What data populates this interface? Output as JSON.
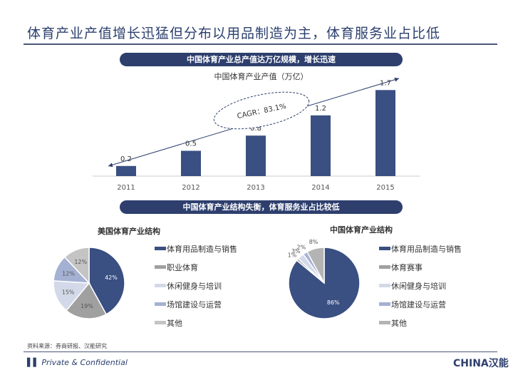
{
  "title": "体育产业产值增长迅猛但分布以用品制造为主，体育服务业占比低",
  "banner1": "中国体育产业总产值达万亿规模，增长迅速",
  "banner2": "中国体育产业结构失衡，体育服务业占比较低",
  "source": "资料来源：券商研报、汉能研究",
  "footer": "Private & Confidential",
  "logo": "CHINA汉能",
  "colors": {
    "navy": "#3a4f82",
    "gray": "#a0a0a0",
    "light": "#d3d9e8",
    "mid": "#a5b1d3",
    "lightgray": "#c4c4c4"
  },
  "chart_data": [
    {
      "type": "bar",
      "title": "中国体育产业产值（万亿）",
      "categories": [
        "2011",
        "2012",
        "2013",
        "2014",
        "2015"
      ],
      "values": [
        0.2,
        0.5,
        0.8,
        1.2,
        1.7
      ],
      "annotation": "CAGR：83.1%",
      "grid": false
    },
    {
      "type": "pie",
      "title": "美国体育产业结构",
      "labels": [
        "体育用品制造与销售",
        "职业体育",
        "休闲健身与培训",
        "场馆建设与运营",
        "其他"
      ],
      "values": [
        42,
        19,
        15,
        12,
        12
      ],
      "colors": [
        "#3a4f82",
        "#a0a0a0",
        "#d3d9e8",
        "#a5b1d3",
        "#c4c4c4"
      ],
      "legend": "right"
    },
    {
      "type": "pie",
      "title": "中国体育产业结构",
      "labels": [
        "体育用品制造与销售",
        "体育赛事",
        "休闲健身与培训",
        "场馆建设与运营",
        "其他"
      ],
      "values": [
        86,
        1,
        3,
        2,
        8
      ],
      "colors": [
        "#3a4f82",
        "#a0a0a0",
        "#d3d9e8",
        "#a5b1d3",
        "#b4b4b4"
      ],
      "legend": "right"
    }
  ]
}
